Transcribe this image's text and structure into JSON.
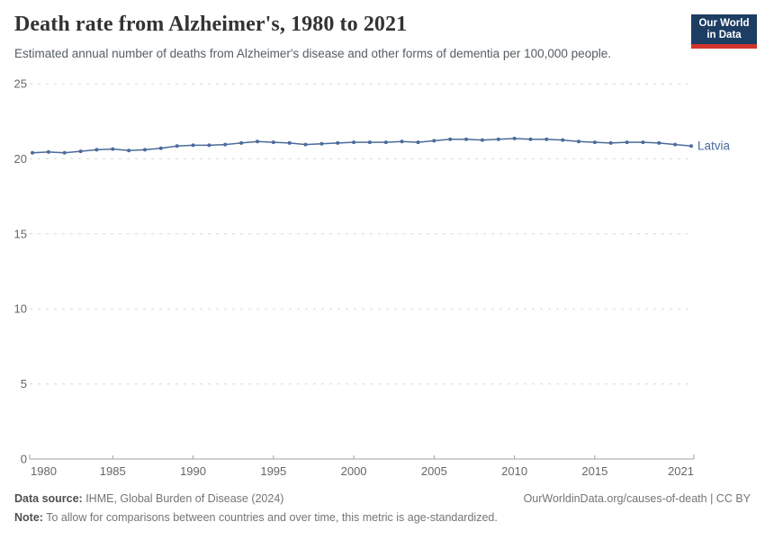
{
  "header": {
    "title": "Death rate from Alzheimer's, 1980 to 2021",
    "subtitle": "Estimated annual number of deaths from Alzheimer's disease and other forms of dementia per 100,000 people.",
    "logo": {
      "line1": "Our World",
      "line2": "in Data"
    }
  },
  "chart_data": {
    "type": "line",
    "title": "Death rate from Alzheimer's, 1980 to 2021",
    "xlabel": "",
    "ylabel": "",
    "xlim": [
      1980,
      2021
    ],
    "ylim": [
      0,
      25
    ],
    "y_ticks": [
      0,
      5,
      10,
      15,
      20,
      25
    ],
    "x_ticks": [
      1980,
      1985,
      1990,
      1995,
      2000,
      2005,
      2010,
      2015,
      2021
    ],
    "grid": "horizontal-dashed",
    "legend_position": "end-of-line-label",
    "x": [
      1980,
      1981,
      1982,
      1983,
      1984,
      1985,
      1986,
      1987,
      1988,
      1989,
      1990,
      1991,
      1992,
      1993,
      1994,
      1995,
      1996,
      1997,
      1998,
      1999,
      2000,
      2001,
      2002,
      2003,
      2004,
      2005,
      2006,
      2007,
      2008,
      2009,
      2010,
      2011,
      2012,
      2013,
      2014,
      2015,
      2016,
      2017,
      2018,
      2019,
      2020,
      2021
    ],
    "series": [
      {
        "name": "Latvia",
        "color": "#4C6A9C",
        "values": [
          20.4,
          20.45,
          20.4,
          20.5,
          20.6,
          20.65,
          20.55,
          20.6,
          20.7,
          20.85,
          20.9,
          20.9,
          20.95,
          21.05,
          21.15,
          21.1,
          21.05,
          20.95,
          21.0,
          21.05,
          21.1,
          21.1,
          21.1,
          21.15,
          21.1,
          21.2,
          21.3,
          21.3,
          21.25,
          21.3,
          21.35,
          21.3,
          21.3,
          21.25,
          21.15,
          21.1,
          21.05,
          21.1,
          21.1,
          21.05,
          20.95,
          20.85
        ]
      }
    ]
  },
  "colors": {
    "line": "#4C6A9C",
    "grid": "#dadada",
    "axis": "#a1a1a1",
    "tick_label": "#666666",
    "logo_bg": "#1d3d63",
    "logo_red": "#d0342c"
  },
  "footer": {
    "datasource_label": "Data source:",
    "datasource_text": " IHME, Global Burden of Disease (2024)",
    "link_text": "OurWorldinData.org/causes-of-death | CC BY",
    "note_label": "Note:",
    "note_text": " To allow for comparisons between countries and over time, this metric is age-standardized."
  }
}
